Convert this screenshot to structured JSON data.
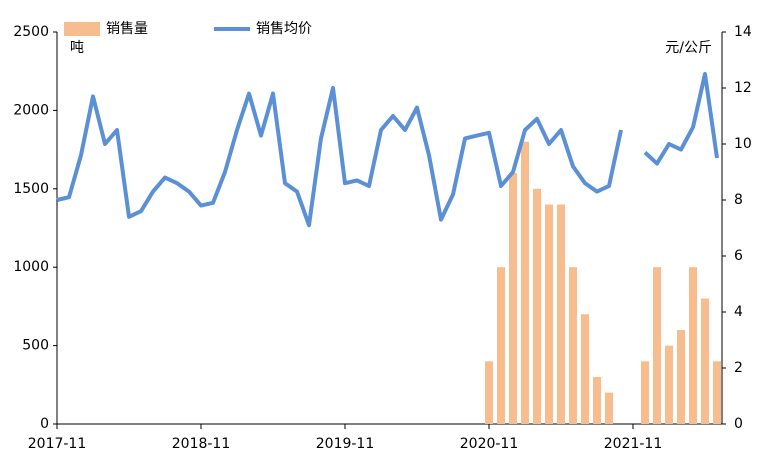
{
  "chart_data": {
    "type": "bar-line",
    "y_label": "吨",
    "y2_label": "元/公斤",
    "x": [
      "2017-11",
      null,
      null,
      null,
      null,
      null,
      null,
      null,
      null,
      null,
      null,
      null,
      "2018-11",
      null,
      null,
      null,
      null,
      null,
      null,
      null,
      null,
      null,
      null,
      null,
      "2019-11",
      null,
      null,
      null,
      null,
      null,
      null,
      null,
      null,
      null,
      null,
      null,
      "2020-11",
      null,
      null,
      null,
      null,
      null,
      null,
      null,
      null,
      null,
      null,
      null,
      "2021-11",
      null,
      null,
      null,
      null,
      null,
      null,
      null
    ],
    "series": [
      {
        "name": "销售量",
        "type": "bar",
        "color": "#f8bd8f",
        "values": [
          null,
          null,
          null,
          null,
          null,
          null,
          null,
          null,
          null,
          null,
          null,
          null,
          null,
          null,
          null,
          null,
          null,
          null,
          null,
          null,
          null,
          null,
          null,
          null,
          null,
          null,
          null,
          null,
          null,
          null,
          null,
          null,
          null,
          null,
          null,
          null,
          400,
          1000,
          1600,
          1800,
          1500,
          1400,
          1400,
          1000,
          700,
          300,
          200,
          null,
          null,
          400,
          1000,
          500,
          600,
          1000,
          800,
          400
        ]
      },
      {
        "name": "销售均价",
        "type": "line",
        "axis": "y2",
        "color": "#5b8fd6",
        "values": [
          8.0,
          8.1,
          9.6,
          11.7,
          10.0,
          10.5,
          7.4,
          7.6,
          8.3,
          8.8,
          8.6,
          8.3,
          7.8,
          7.9,
          9.0,
          10.5,
          11.8,
          10.3,
          11.8,
          8.6,
          8.3,
          7.1,
          10.2,
          12.0,
          8.6,
          8.7,
          8.5,
          10.5,
          11.0,
          10.5,
          11.3,
          9.6,
          7.3,
          8.2,
          10.2,
          10.3,
          10.4,
          8.5,
          9.0,
          10.5,
          10.9,
          10.0,
          10.5,
          9.2,
          8.6,
          8.3,
          8.5,
          10.5,
          null,
          9.7,
          9.3,
          10.0,
          9.8,
          10.6,
          12.5,
          9.5
        ]
      }
    ],
    "ylim": [
      0,
      2500
    ],
    "yticks": [
      0,
      500,
      1000,
      1500,
      2000,
      2500
    ],
    "y2lim": [
      0,
      14
    ],
    "y2ticks": [
      0,
      2,
      4,
      6,
      8,
      10,
      12,
      14
    ],
    "legend": "top"
  }
}
